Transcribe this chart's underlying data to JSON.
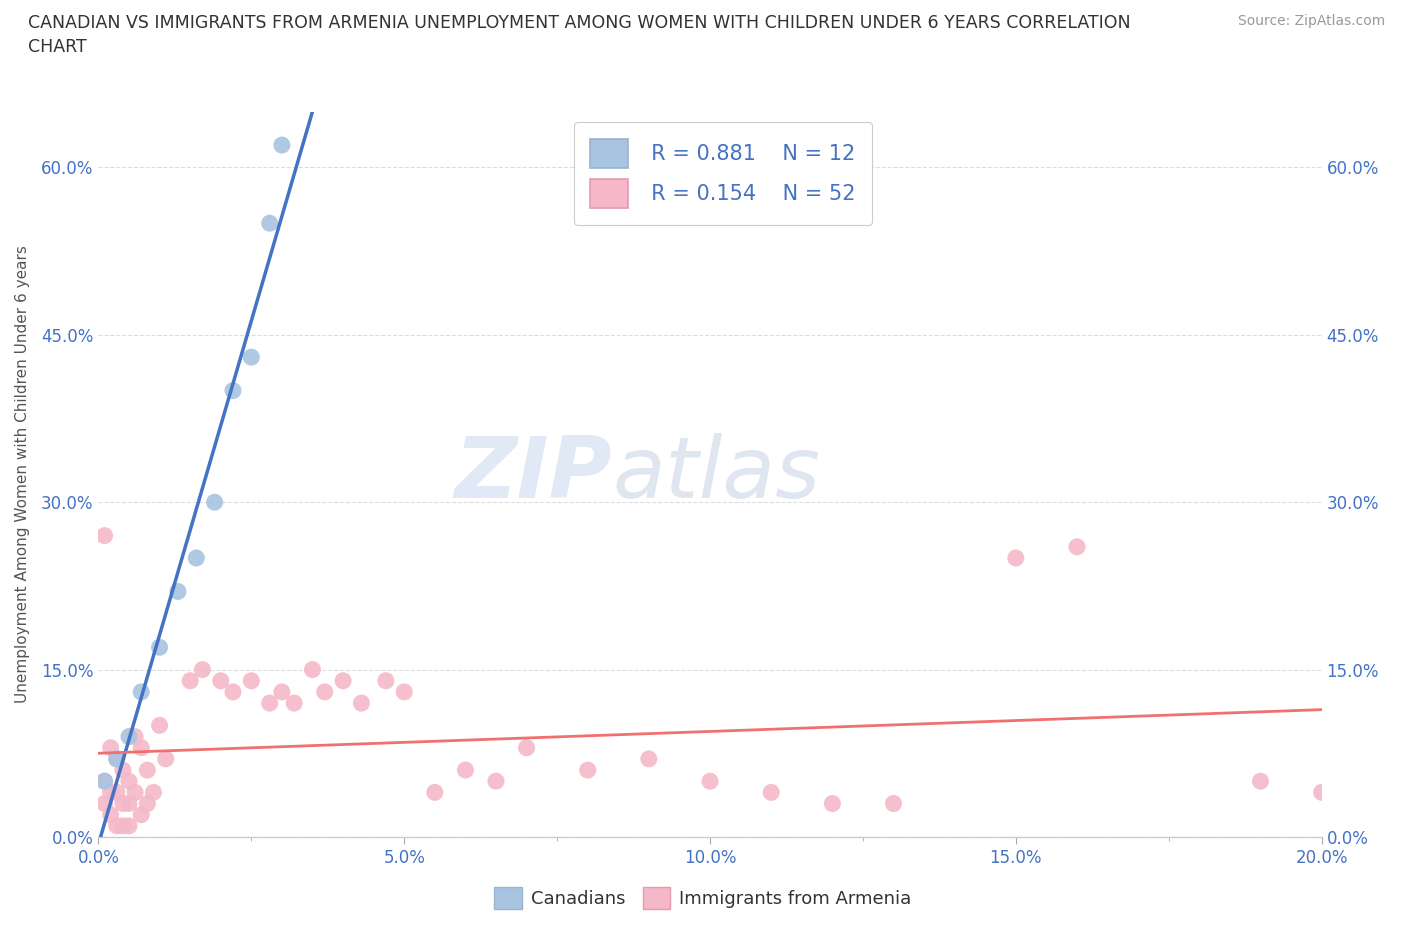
{
  "title": "CANADIAN VS IMMIGRANTS FROM ARMENIA UNEMPLOYMENT AMONG WOMEN WITH CHILDREN UNDER 6 YEARS CORRELATION\nCHART",
  "source": "Source: ZipAtlas.com",
  "ylabel": "Unemployment Among Women with Children Under 6 years",
  "watermark_zip": "ZIP",
  "watermark_atlas": "atlas",
  "legend_r1": "R = 0.881",
  "legend_n1": "N = 12",
  "legend_r2": "R = 0.154",
  "legend_n2": "N = 52",
  "canadian_color": "#a8c4e0",
  "armenian_color": "#f4b8c8",
  "canadian_line_color": "#4472c4",
  "armenian_line_color": "#f07070",
  "canadians_label": "Canadians",
  "armenians_label": "Immigrants from Armenia",
  "xlim": [
    0.0,
    0.2
  ],
  "ylim": [
    0.0,
    0.65
  ],
  "yticks": [
    0.0,
    0.15,
    0.3,
    0.45,
    0.6
  ],
  "xticks_major": [
    0.0,
    0.05,
    0.1,
    0.15,
    0.2
  ],
  "xticks_minor": [
    0.025,
    0.075,
    0.125,
    0.175
  ],
  "canadian_x": [
    0.001,
    0.003,
    0.005,
    0.007,
    0.01,
    0.013,
    0.016,
    0.019,
    0.022,
    0.025,
    0.028,
    0.03
  ],
  "canadian_y": [
    0.05,
    0.07,
    0.09,
    0.13,
    0.17,
    0.22,
    0.25,
    0.3,
    0.4,
    0.43,
    0.55,
    0.62
  ],
  "armenian_x": [
    0.001,
    0.001,
    0.001,
    0.002,
    0.002,
    0.002,
    0.003,
    0.003,
    0.003,
    0.004,
    0.004,
    0.004,
    0.005,
    0.005,
    0.005,
    0.006,
    0.006,
    0.007,
    0.007,
    0.008,
    0.008,
    0.009,
    0.01,
    0.011,
    0.015,
    0.017,
    0.02,
    0.022,
    0.025,
    0.028,
    0.03,
    0.032,
    0.035,
    0.037,
    0.04,
    0.043,
    0.047,
    0.05,
    0.055,
    0.06,
    0.065,
    0.07,
    0.08,
    0.09,
    0.1,
    0.11,
    0.12,
    0.13,
    0.15,
    0.16,
    0.19,
    0.2
  ],
  "armenian_y": [
    0.27,
    0.05,
    0.03,
    0.08,
    0.04,
    0.02,
    0.07,
    0.04,
    0.01,
    0.06,
    0.03,
    0.01,
    0.05,
    0.03,
    0.01,
    0.09,
    0.04,
    0.08,
    0.02,
    0.06,
    0.03,
    0.04,
    0.1,
    0.07,
    0.14,
    0.15,
    0.14,
    0.13,
    0.14,
    0.12,
    0.13,
    0.12,
    0.15,
    0.13,
    0.14,
    0.12,
    0.14,
    0.13,
    0.04,
    0.06,
    0.05,
    0.08,
    0.06,
    0.07,
    0.05,
    0.04,
    0.03,
    0.03,
    0.25,
    0.26,
    0.05,
    0.04
  ],
  "background_color": "#ffffff",
  "grid_color": "#dddddd"
}
